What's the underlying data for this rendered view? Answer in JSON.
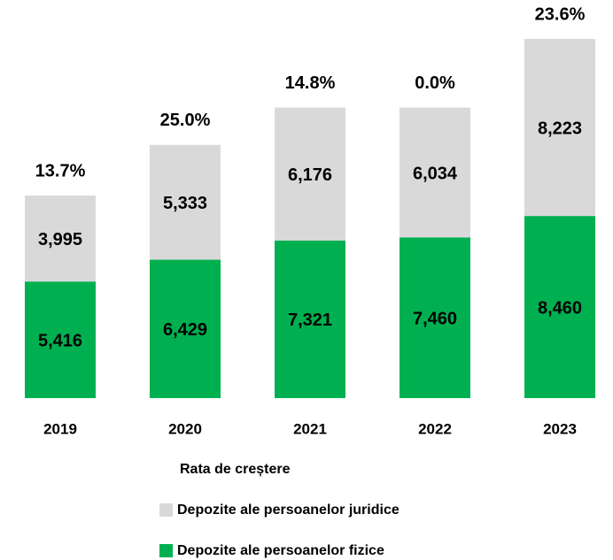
{
  "chart_data": {
    "type": "bar",
    "stacked": true,
    "categories": [
      "2019",
      "2020",
      "2021",
      "2022",
      "2023"
    ],
    "series": [
      {
        "name": "Depozite ale persoanelor fizice",
        "color": "#00b050",
        "values": [
          5416,
          6429,
          7321,
          7460,
          8460
        ],
        "value_labels": [
          "5,416",
          "6,429",
          "7,321",
          "7,460",
          "8,460"
        ]
      },
      {
        "name": "Depozite ale persoanelor juridice",
        "color": "#d9d9d9",
        "values": [
          3995,
          5333,
          6176,
          6034,
          8223
        ],
        "value_labels": [
          "3,995",
          "5,333",
          "6,176",
          "6,034",
          "8,223"
        ]
      },
      {
        "name": "Rata de creștere",
        "values": [
          13.7,
          25.0,
          14.8,
          0.0,
          23.6
        ],
        "value_labels": [
          "13.7%",
          "25.0%",
          "14.8%",
          "0.0%",
          "23.6%"
        ]
      }
    ]
  }
}
